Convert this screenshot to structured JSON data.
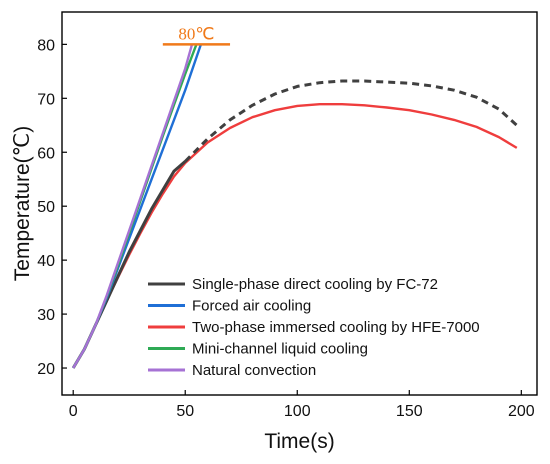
{
  "chart_data": {
    "type": "line",
    "xlabel": "Time(s)",
    "ylabel": "Temperature(℃)",
    "xlim": [
      -5,
      207
    ],
    "ylim": [
      15,
      86
    ],
    "xticks": [
      0,
      50,
      100,
      150,
      200
    ],
    "yticks": [
      20,
      30,
      40,
      50,
      60,
      70,
      80
    ],
    "grid": false,
    "legend_position": "bottom-left",
    "annotation": {
      "text": "80℃",
      "y": 80,
      "x_range": [
        40,
        70
      ],
      "color": "#f07a1a"
    },
    "series": [
      {
        "name": "Single-phase direct cooling by FC-72",
        "color": "#404040",
        "solid": {
          "x": [
            0,
            5,
            10,
            15,
            20,
            25,
            30,
            35,
            40,
            45,
            50
          ],
          "y": [
            20,
            23.5,
            28,
            32.5,
            37,
            41.5,
            45.5,
            49.5,
            53,
            56.5,
            58.3
          ]
        },
        "dashed": {
          "x": [
            50,
            60,
            70,
            80,
            90,
            100,
            110,
            120,
            130,
            140,
            150,
            160,
            170,
            180,
            190,
            198
          ],
          "y": [
            58.3,
            62.5,
            66,
            68.7,
            70.8,
            72.2,
            72.9,
            73.2,
            73.2,
            73,
            72.8,
            72.3,
            71.5,
            70.2,
            68,
            65
          ]
        }
      },
      {
        "name": "Forced air cooling",
        "color": "#1f6fd6",
        "x": [
          0,
          5,
          10,
          15,
          20,
          25,
          30,
          35,
          40,
          45,
          50,
          57
        ],
        "y": [
          20,
          23.5,
          28,
          33,
          38.5,
          44,
          49.5,
          55,
          60.5,
          66,
          71.5,
          80
        ]
      },
      {
        "name": "Two-phase immersed cooling by HFE-7000",
        "color": "#ef3d3d",
        "x": [
          0,
          5,
          10,
          15,
          20,
          25,
          30,
          35,
          40,
          45,
          50,
          60,
          70,
          80,
          90,
          100,
          110,
          120,
          130,
          140,
          150,
          160,
          170,
          180,
          190,
          198
        ],
        "y": [
          20,
          23.5,
          28,
          32.5,
          36.8,
          41,
          45,
          48.8,
          52.3,
          55.5,
          58,
          61.8,
          64.5,
          66.5,
          67.8,
          68.6,
          68.9,
          68.9,
          68.7,
          68.3,
          67.8,
          67,
          66,
          64.7,
          62.8,
          60.8
        ]
      },
      {
        "name": "Mini-channel liquid cooling",
        "color": "#2eaa55",
        "x": [
          0,
          5,
          10,
          15,
          20,
          25,
          30,
          35,
          40,
          45,
          50,
          55
        ],
        "y": [
          20,
          23.5,
          28,
          33.3,
          39,
          45,
          51,
          57,
          63,
          68.8,
          74.5,
          80
        ]
      },
      {
        "name": "Natural convection",
        "color": "#a672d4",
        "x": [
          0,
          5,
          10,
          15,
          20,
          25,
          30,
          35,
          40,
          45,
          50,
          53
        ],
        "y": [
          20,
          23.5,
          28,
          33.5,
          39.5,
          45.5,
          51.5,
          57.5,
          63.5,
          69.5,
          75.5,
          80
        ]
      }
    ]
  }
}
